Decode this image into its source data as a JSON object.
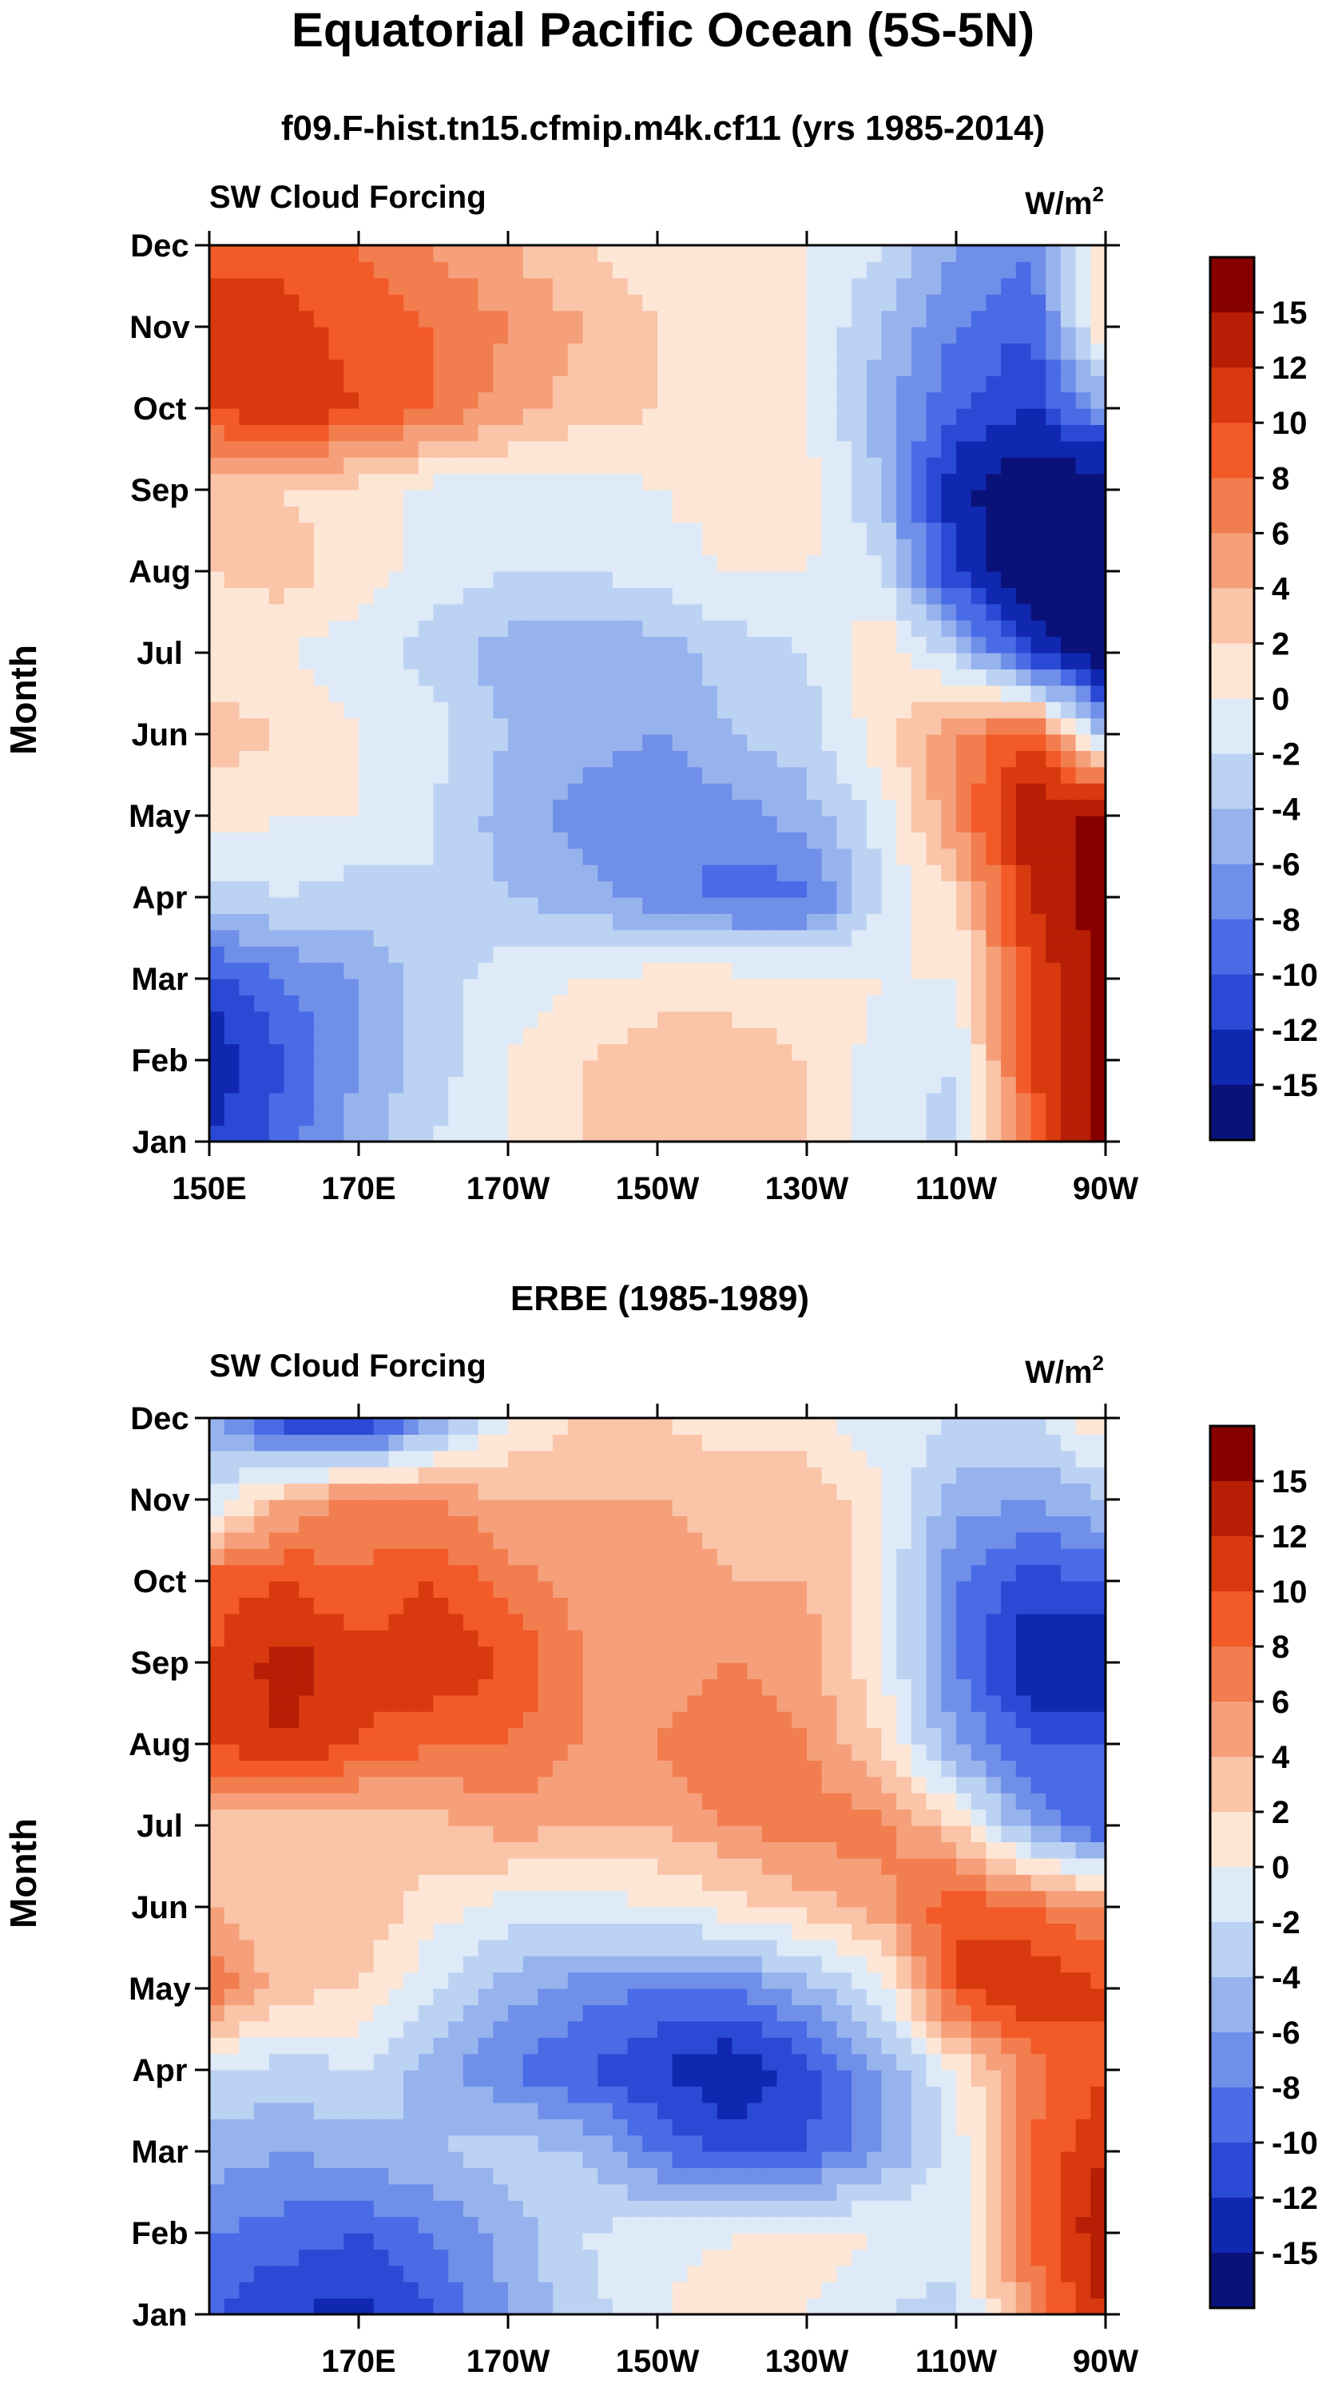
{
  "title": "Equatorial Pacific Ocean (5S-5N)",
  "colorbar": {
    "labels": [
      "15",
      "12",
      "10",
      "8",
      "6",
      "4",
      "2",
      "0",
      "-2",
      "-4",
      "-6",
      "-8",
      "-10",
      "-12",
      "-15"
    ],
    "colors": [
      "#870000",
      "#b61e05",
      "#d9390f",
      "#f25a28",
      "#f27d4f",
      "#f5a07a",
      "#fac4a8",
      "#fde6d6",
      "#deeaf7",
      "#bcd2f3",
      "#97b3ee",
      "#6f8fe9",
      "#4a6be6",
      "#2a4ad6",
      "#1028b0",
      "#0a127a"
    ]
  },
  "chart_data": [
    {
      "type": "heatmap",
      "title": "f09.F-hist.tn15.cfmip.m4k.cf11 (yrs 1985-2014)",
      "left_label": "SW Cloud Forcing",
      "units_label": "W/m",
      "units_sup": "2",
      "ylabel": "Month",
      "y_ticks": [
        "Jan",
        "Feb",
        "Mar",
        "Apr",
        "May",
        "Jun",
        "Jul",
        "Aug",
        "Sep",
        "Oct",
        "Nov",
        "Dec"
      ],
      "x_ticks": [
        "150E",
        "170E",
        "170W",
        "150W",
        "130W",
        "110W",
        "90W"
      ],
      "x_range": [
        "150E",
        "90W"
      ],
      "levels": [
        -15,
        -12,
        -10,
        -8,
        -6,
        -4,
        -2,
        0,
        2,
        4,
        6,
        8,
        10,
        12,
        15
      ],
      "longitudes": [
        150,
        160,
        170,
        180,
        190,
        200,
        210,
        220,
        230,
        240,
        250,
        260,
        270
      ],
      "months": [
        "Jan",
        "Feb",
        "Mar",
        "Apr",
        "May",
        "Jun",
        "Jul",
        "Aug",
        "Sep",
        "Oct",
        "Nov",
        "Dec"
      ],
      "values": [
        [
          -12,
          -9,
          -5,
          -2,
          0,
          2,
          3,
          3,
          2,
          -1,
          -3,
          8,
          16
        ],
        [
          -14,
          -10,
          -6,
          -3,
          0,
          2,
          3,
          3,
          2,
          -1,
          -2,
          10,
          16
        ],
        [
          -11,
          -8,
          -6,
          -3,
          -1,
          0,
          1,
          1,
          1,
          0,
          0,
          10,
          16
        ],
        [
          -3,
          -2,
          -3,
          -2,
          -4,
          -5,
          -7,
          -9,
          -9,
          -2,
          2,
          12,
          17
        ],
        [
          1,
          0,
          0,
          -2,
          -5,
          -7,
          -8,
          -7,
          -5,
          -1,
          6,
          14,
          16
        ],
        [
          3,
          2,
          0,
          -1,
          -4,
          -5,
          -6,
          -4,
          -3,
          1,
          6,
          10,
          -4
        ],
        [
          1,
          0,
          -1,
          -3,
          -5,
          -6,
          -5,
          -3,
          -2,
          2,
          -3,
          -12,
          -18
        ],
        [
          2,
          3,
          1,
          -1,
          -2,
          -2,
          -1,
          0,
          0,
          -2,
          -12,
          -18,
          -18
        ],
        [
          2,
          2,
          1,
          -1,
          -1,
          -1,
          0,
          1,
          1,
          -4,
          -14,
          -18,
          -18
        ],
        [
          10,
          12,
          10,
          8,
          5,
          3,
          2,
          1,
          0,
          -5,
          -10,
          -12,
          -6
        ],
        [
          12,
          11,
          9,
          8,
          6,
          4,
          2,
          1,
          0,
          -4,
          -8,
          -10,
          2
        ],
        [
          8,
          9,
          8,
          6,
          4,
          2,
          1,
          1,
          0,
          -2,
          -6,
          -8,
          2
        ]
      ]
    },
    {
      "type": "heatmap",
      "title": "ERBE (1985-1989)",
      "left_label": "SW Cloud Forcing",
      "units_label": "W/m",
      "units_sup": "2",
      "ylabel": "Month",
      "y_ticks": [
        "Jan",
        "Feb",
        "Mar",
        "Apr",
        "May",
        "Jun",
        "Jul",
        "Aug",
        "Sep",
        "Oct",
        "Nov",
        "Dec"
      ],
      "x_ticks": [
        "170E",
        "170W",
        "150W",
        "130W",
        "110W",
        "90W"
      ],
      "x_range": [
        "150E",
        "90W"
      ],
      "levels": [
        -15,
        -12,
        -10,
        -8,
        -6,
        -4,
        -2,
        0,
        2,
        4,
        6,
        8,
        10,
        12,
        15
      ],
      "longitudes": [
        150,
        160,
        170,
        180,
        190,
        200,
        210,
        220,
        230,
        240,
        250,
        260,
        270
      ],
      "months": [
        "Jan",
        "Feb",
        "Mar",
        "Apr",
        "May",
        "Jun",
        "Jul",
        "Aug",
        "Sep",
        "Oct",
        "Nov",
        "Dec"
      ],
      "values": [
        [
          -10,
          -12,
          -13,
          -10,
          -6,
          -3,
          0,
          1,
          0,
          -2,
          -3,
          6,
          12
        ],
        [
          -8,
          -9,
          -10,
          -8,
          -5,
          -2,
          -1,
          0,
          1,
          0,
          -1,
          8,
          14
        ],
        [
          -5,
          -6,
          -5,
          -4,
          -3,
          -4,
          -8,
          -11,
          -10,
          -6,
          -1,
          8,
          12
        ],
        [
          -2,
          -3,
          -2,
          -5,
          -8,
          -10,
          -12,
          -14,
          -11,
          -6,
          0,
          7,
          10
        ],
        [
          8,
          3,
          2,
          -2,
          -5,
          -7,
          -8,
          -8,
          -5,
          -1,
          10,
          12,
          10
        ],
        [
          4,
          2,
          4,
          1,
          -1,
          -1,
          0,
          1,
          3,
          5,
          10,
          8,
          6
        ],
        [
          3,
          2,
          2,
          3,
          5,
          4,
          4,
          6,
          7,
          7,
          2,
          -6,
          -10
        ],
        [
          10,
          12,
          10,
          8,
          8,
          6,
          6,
          8,
          6,
          2,
          -6,
          -10,
          -10
        ],
        [
          10,
          13,
          11,
          12,
          10,
          6,
          5,
          6,
          5,
          0,
          -8,
          -14,
          -15
        ],
        [
          9,
          10,
          8,
          10,
          7,
          5,
          6,
          4,
          4,
          0,
          -8,
          -11,
          -10
        ],
        [
          -2,
          4,
          7,
          6,
          4,
          4,
          4,
          3,
          4,
          0,
          -5,
          -6,
          -4
        ],
        [
          -5,
          -12,
          -14,
          -6,
          0,
          2,
          2,
          1,
          0,
          -1,
          -2,
          -2,
          2
        ]
      ]
    }
  ]
}
